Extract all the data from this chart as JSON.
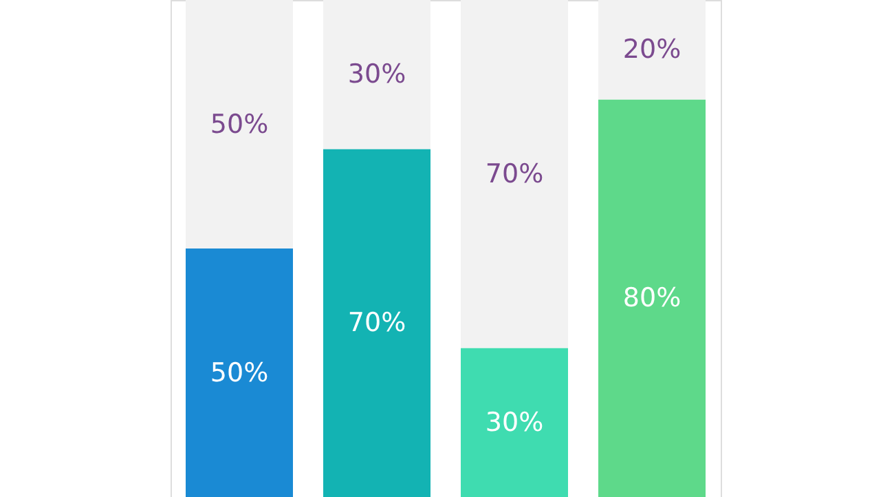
{
  "chart_data": {
    "type": "bar",
    "stacked": true,
    "categories": [
      null,
      null,
      null,
      null
    ],
    "series": [
      {
        "colors": [
          "#1a8ad4",
          "#13b3b3",
          "#3fdcb0",
          "#5ed98a"
        ],
        "values": [
          50,
          70,
          30,
          80
        ],
        "value_labels": [
          "50%",
          "70%",
          "30%",
          "80%"
        ]
      },
      {
        "color": "#f2f2f2",
        "values": [
          50,
          30,
          70,
          20
        ],
        "value_labels": [
          "50%",
          "30%",
          "70%",
          "20%"
        ]
      }
    ],
    "tick_labels": false
  }
}
